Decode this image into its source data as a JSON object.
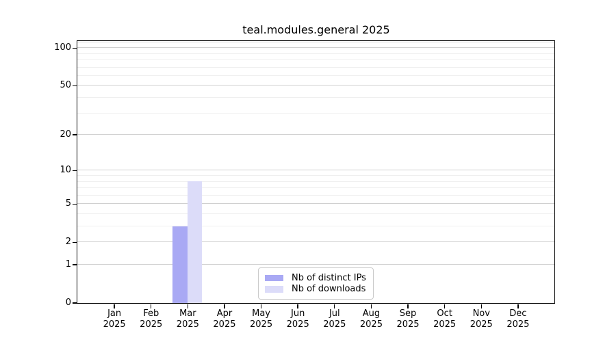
{
  "title": "teal.modules.general 2025",
  "chart_data": {
    "type": "bar",
    "title": "teal.modules.general 2025",
    "categories": [
      "Jan",
      "Feb",
      "Mar",
      "Apr",
      "May",
      "Jun",
      "Jul",
      "Aug",
      "Sep",
      "Oct",
      "Nov",
      "Dec"
    ],
    "category_year": "2025",
    "series": [
      {
        "name": "Nb of distinct IPs",
        "color": "#a9a9f4",
        "values": [
          0,
          0,
          3,
          0,
          0,
          0,
          0,
          0,
          0,
          0,
          0,
          0
        ]
      },
      {
        "name": "Nb of downloads",
        "color": "#dcdcf9",
        "values": [
          0,
          0,
          8,
          0,
          0,
          0,
          0,
          0,
          0,
          0,
          0,
          0
        ]
      }
    ],
    "yscale": "log1p",
    "ylim": [
      0,
      113.6
    ],
    "yticks_major": [
      0,
      1,
      2,
      5,
      10,
      20,
      50,
      100
    ],
    "yticks_minor": [
      3,
      4,
      6,
      7,
      8,
      9,
      30,
      40,
      60,
      70,
      80,
      90,
      110
    ],
    "grid": "both",
    "legend_position": "lower center",
    "colors": {
      "grid_major": "#d0d0d0",
      "grid_minor": "#efefef",
      "axis": "#000000",
      "background": "#ffffff"
    }
  }
}
